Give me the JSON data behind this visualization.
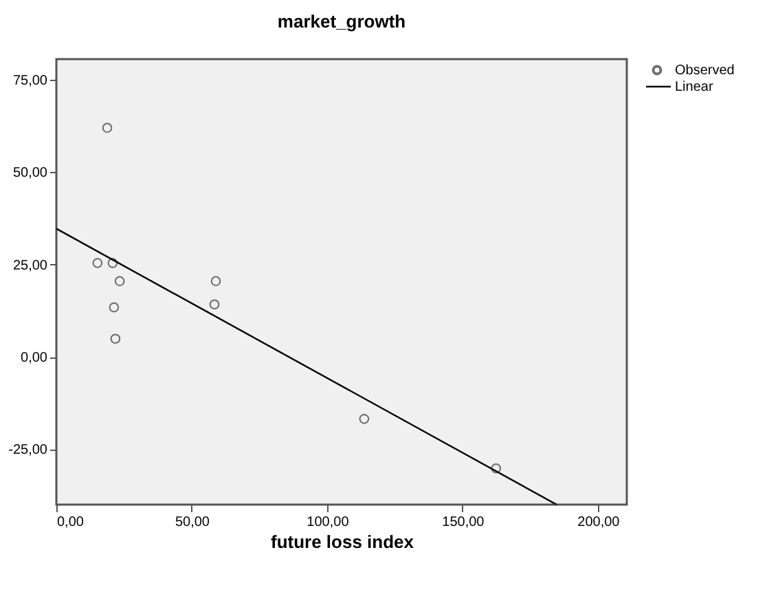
{
  "chart_data": {
    "type": "scatter",
    "title": "market_growth",
    "xlabel": "future loss index",
    "series": [
      {
        "name": "Observed",
        "type": "scatter",
        "marker": "circle",
        "color": "#333333",
        "x": [
          18.8,
          15.2,
          20.8,
          23.4,
          21.3,
          21.8,
          58.9,
          58.4,
          113.7,
          162.4
        ],
        "values": [
          62,
          25.4,
          25.4,
          20.5,
          13.4,
          4.9,
          20.5,
          14.2,
          -16.8,
          -30.2
        ]
      },
      {
        "name": "Linear",
        "type": "line",
        "marker": "none",
        "line_style": "solid",
        "color": "#000000",
        "x": [
          0,
          184.8
        ],
        "values": [
          34.7,
          -40
        ]
      }
    ],
    "xlim": [
      0,
      210.7
    ],
    "ylim": [
      -40,
      80.6
    ],
    "xticks": [
      {
        "value": 0,
        "label": "0,00"
      },
      {
        "value": 50,
        "label": "50,00"
      },
      {
        "value": 100,
        "label": "100,00"
      },
      {
        "value": 150,
        "label": "150,00"
      },
      {
        "value": 200,
        "label": "200,00"
      }
    ],
    "yticks": [
      {
        "value": -25,
        "label": "-25,00"
      },
      {
        "value": 0,
        "label": "0,00"
      },
      {
        "value": 25,
        "label": "25,00"
      },
      {
        "value": 50,
        "label": "50,00"
      },
      {
        "value": 75,
        "label": "75,00"
      }
    ],
    "grid": false,
    "legend": "top right"
  }
}
